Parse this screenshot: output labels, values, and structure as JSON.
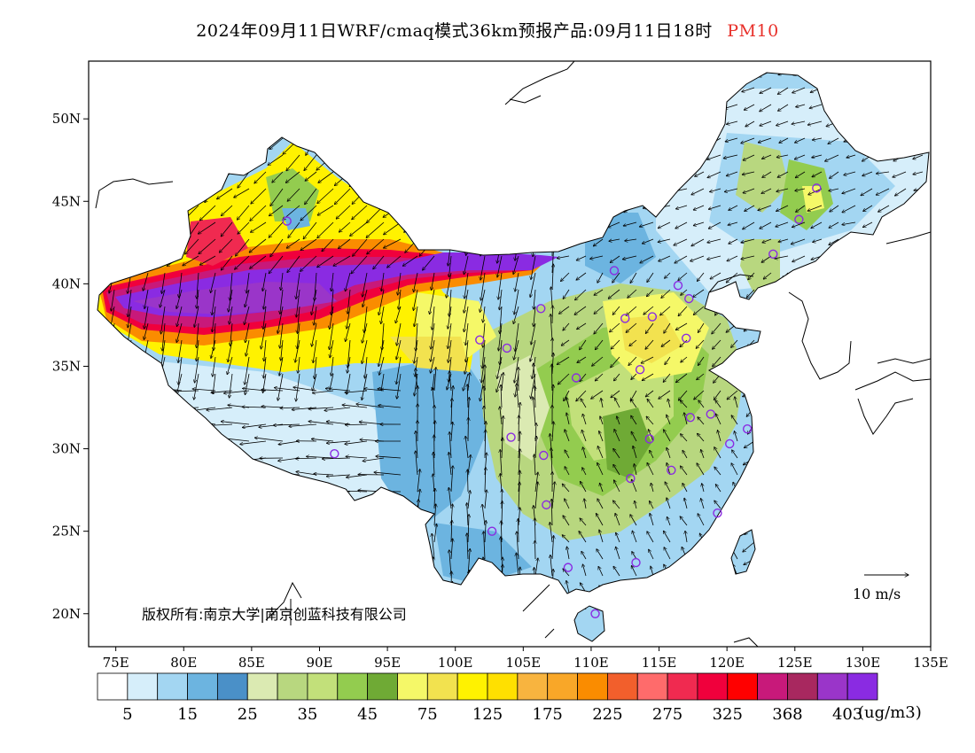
{
  "title": {
    "main": "2024年09月11日WRF/cmaq模式36km预报产品:09月11日18时",
    "variable": "PM10",
    "variable_color": "#e8302a"
  },
  "axes": {
    "lat_labels": [
      "50N",
      "45N",
      "40N",
      "35N",
      "30N",
      "25N",
      "20N"
    ],
    "lat_values": [
      50,
      45,
      40,
      35,
      30,
      25,
      20
    ],
    "lon_labels": [
      "75E",
      "80E",
      "85E",
      "90E",
      "95E",
      "100E",
      "105E",
      "110E",
      "115E",
      "120E",
      "125E",
      "130E",
      "135E"
    ],
    "lon_values": [
      75,
      80,
      85,
      90,
      95,
      100,
      105,
      110,
      115,
      120,
      125,
      130,
      135
    ],
    "lon_range": [
      73,
      135
    ],
    "lat_range": [
      18,
      53.5
    ]
  },
  "colorbar": {
    "colors": [
      "#ffffff",
      "#d6eefa",
      "#a3d6f2",
      "#6cb4e0",
      "#4a90c8",
      "#dbeab2",
      "#b8d77f",
      "#c2e07a",
      "#93cc4f",
      "#6faa35",
      "#f5f868",
      "#f2e24f",
      "#fff200",
      "#ffe000",
      "#f8b43f",
      "#f9a728",
      "#fa8c00",
      "#f25f2c",
      "#ff6b6b",
      "#f02a50",
      "#f0003c",
      "#ff0000",
      "#c8197a",
      "#a8285f",
      "#9a35c9",
      "#8a2be2"
    ],
    "labels": [
      "5",
      "15",
      "25",
      "35",
      "45",
      "75",
      "125",
      "175",
      "225",
      "275",
      "325",
      "368",
      "403"
    ],
    "unit": "(ug/m3)"
  },
  "wind_scale": {
    "label": "10 m/s"
  },
  "copyright": "版权所有:南京大学|南京创蓝科技有限公司",
  "cities": [
    {
      "lon": 87.6,
      "lat": 43.8
    },
    {
      "lon": 91.1,
      "lat": 29.7
    },
    {
      "lon": 101.8,
      "lat": 36.6
    },
    {
      "lon": 103.8,
      "lat": 36.1
    },
    {
      "lon": 106.3,
      "lat": 38.5
    },
    {
      "lon": 111.7,
      "lat": 40.8
    },
    {
      "lon": 112.5,
      "lat": 37.9
    },
    {
      "lon": 114.5,
      "lat": 38.0
    },
    {
      "lon": 116.4,
      "lat": 39.9
    },
    {
      "lon": 117.2,
      "lat": 39.1
    },
    {
      "lon": 117.0,
      "lat": 36.7
    },
    {
      "lon": 113.6,
      "lat": 34.8
    },
    {
      "lon": 108.9,
      "lat": 34.3
    },
    {
      "lon": 104.1,
      "lat": 30.7
    },
    {
      "lon": 106.5,
      "lat": 29.6
    },
    {
      "lon": 106.7,
      "lat": 26.6
    },
    {
      "lon": 102.7,
      "lat": 25.0
    },
    {
      "lon": 108.3,
      "lat": 22.8
    },
    {
      "lon": 113.3,
      "lat": 23.1
    },
    {
      "lon": 110.3,
      "lat": 20.0
    },
    {
      "lon": 112.9,
      "lat": 28.2
    },
    {
      "lon": 114.3,
      "lat": 30.6
    },
    {
      "lon": 115.9,
      "lat": 28.7
    },
    {
      "lon": 117.3,
      "lat": 31.9
    },
    {
      "lon": 118.8,
      "lat": 32.1
    },
    {
      "lon": 121.5,
      "lat": 31.2
    },
    {
      "lon": 120.2,
      "lat": 30.3
    },
    {
      "lon": 119.3,
      "lat": 26.1
    },
    {
      "lon": 123.4,
      "lat": 41.8
    },
    {
      "lon": 125.3,
      "lat": 43.9
    },
    {
      "lon": 126.6,
      "lat": 45.8
    }
  ]
}
